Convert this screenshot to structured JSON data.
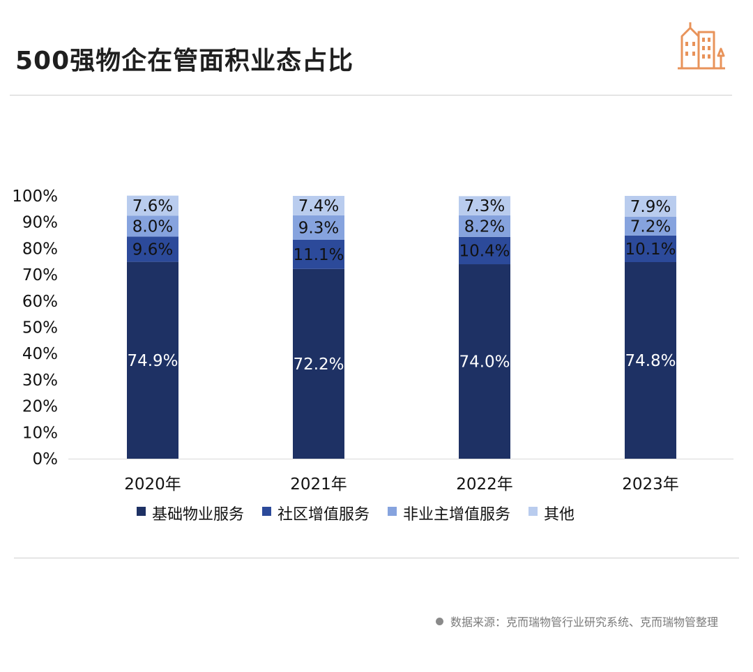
{
  "header": {
    "title": "500强物企在管面积业态占比",
    "logo_icon": "buildings-icon",
    "logo_color": "#e8935a"
  },
  "footer": {
    "source": "数据来源：克而瑞物管行业研究系统、克而瑞物管整理",
    "bullet_icon": "dot-icon"
  },
  "chart_data": {
    "type": "bar",
    "stacked": true,
    "title": "",
    "xlabel": "",
    "ylabel": "",
    "categories": [
      "2020年",
      "2021年",
      "2022年",
      "2023年"
    ],
    "ylim": [
      0,
      100
    ],
    "yticks": [
      "0%",
      "10%",
      "20%",
      "30%",
      "40%",
      "50%",
      "60%",
      "70%",
      "80%",
      "90%",
      "100%"
    ],
    "legend_position": "bottom",
    "grid": false,
    "series": [
      {
        "name": "基础物业服务",
        "values": [
          74.9,
          72.2,
          74.0,
          74.8
        ],
        "labels": [
          "74.9%",
          "72.2%",
          "74.0%",
          "74.8%"
        ],
        "color": "#1e3164",
        "label_color": "#ffffff"
      },
      {
        "name": "社区增值服务",
        "values": [
          9.6,
          11.1,
          10.4,
          10.1
        ],
        "labels": [
          "9.6%",
          "11.1%",
          "10.4%",
          "10.1%"
        ],
        "color": "#2c4a9a",
        "label_color": "#111111"
      },
      {
        "name": "非业主增值服务",
        "values": [
          8.0,
          9.3,
          8.2,
          7.2
        ],
        "labels": [
          "8.0%",
          "9.3%",
          "8.2%",
          "7.2%"
        ],
        "color": "#86a3de",
        "label_color": "#111111"
      },
      {
        "name": "其他",
        "values": [
          7.6,
          7.4,
          7.3,
          7.9
        ],
        "labels": [
          "7.6%",
          "7.4%",
          "7.3%",
          "7.9%"
        ],
        "color": "#b9ccee",
        "label_color": "#111111"
      }
    ]
  }
}
